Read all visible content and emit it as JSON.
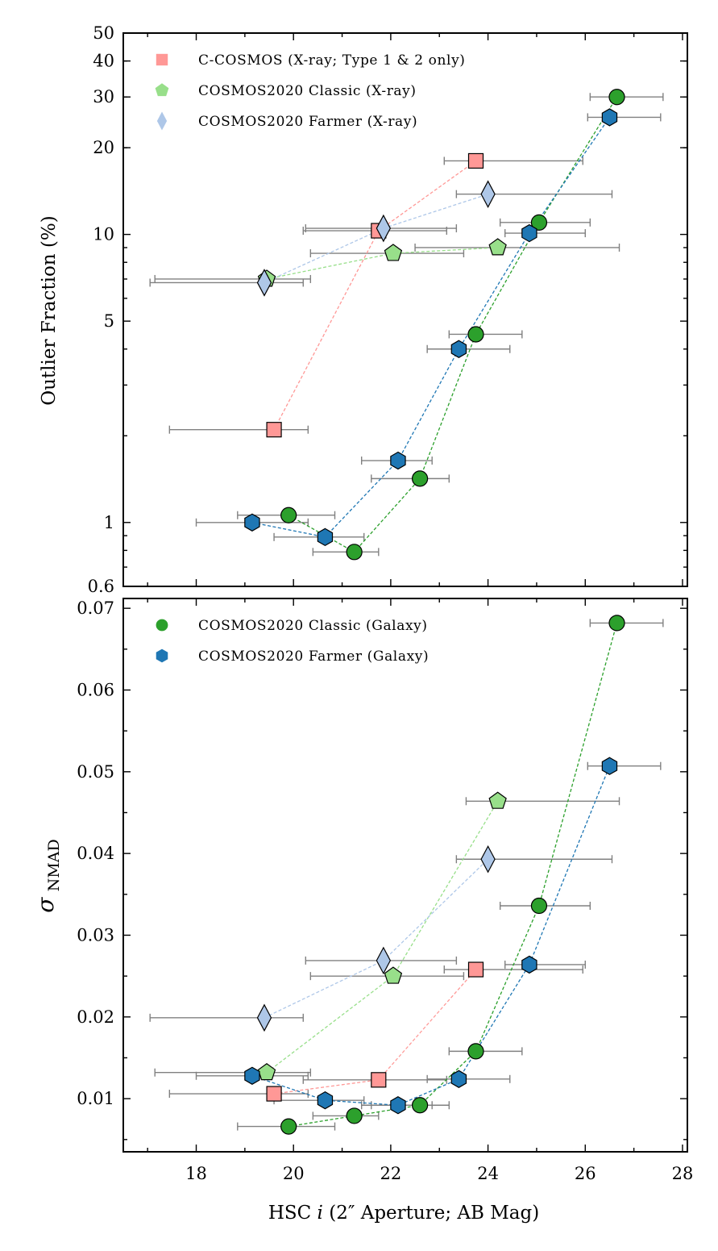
{
  "chart_data": [
    {
      "type": "scatter",
      "yscale": "log",
      "ylabel": "Outlier Fraction (%)",
      "xlabel": "",
      "xlim": [
        16.5,
        28.1
      ],
      "ylim": [
        0.6,
        50
      ],
      "yticks": [
        {
          "value": 0.6,
          "label": "0.6"
        },
        {
          "value": 1,
          "label": "1"
        },
        {
          "value": 5,
          "label": "5"
        },
        {
          "value": 10,
          "label": "10"
        },
        {
          "value": 20,
          "label": "20"
        },
        {
          "value": 30,
          "label": "30"
        },
        {
          "value": 40,
          "label": "40"
        },
        {
          "value": 50,
          "label": "50"
        }
      ],
      "legend_position": "top-left",
      "series": [
        {
          "name": "C-COSMOS (X-ray; Type 1 & 2 only)",
          "marker": "square",
          "color": "#ff9896",
          "legend": true,
          "points": [
            {
              "x": 19.6,
              "y": 2.1,
              "xlo": 17.45,
              "xhi": 20.3
            },
            {
              "x": 21.75,
              "y": 10.3,
              "xlo": 20.2,
              "xhi": 23.15
            },
            {
              "x": 23.75,
              "y": 18.0,
              "xlo": 23.1,
              "xhi": 25.95
            }
          ]
        },
        {
          "name": "COSMOS2020 Classic (X-ray)",
          "marker": "pentagon",
          "color": "#98df8a",
          "legend": true,
          "points": [
            {
              "x": 19.45,
              "y": 7.0,
              "xlo": 17.15,
              "xhi": 20.35
            },
            {
              "x": 22.05,
              "y": 8.6,
              "xlo": 20.35,
              "xhi": 23.5
            },
            {
              "x": 24.2,
              "y": 9.0,
              "xlo": 22.5,
              "xhi": 26.7
            }
          ]
        },
        {
          "name": "COSMOS2020 Farmer (X-ray)",
          "marker": "diamond",
          "color": "#aec7e8",
          "legend": true,
          "points": [
            {
              "x": 19.4,
              "y": 6.8,
              "xlo": 17.05,
              "xhi": 20.2
            },
            {
              "x": 21.85,
              "y": 10.5,
              "xlo": 20.25,
              "xhi": 23.35
            },
            {
              "x": 24.0,
              "y": 13.8,
              "xlo": 23.35,
              "xhi": 26.55
            }
          ]
        },
        {
          "name": "COSMOS2020 Classic (Galaxy)",
          "marker": "circle",
          "color": "#2ca02c",
          "legend": false,
          "points": [
            {
              "x": 19.9,
              "y": 1.06,
              "xlo": 18.85,
              "xhi": 20.85
            },
            {
              "x": 21.25,
              "y": 0.79,
              "xlo": 20.4,
              "xhi": 21.75
            },
            {
              "x": 22.6,
              "y": 1.42,
              "xlo": 21.6,
              "xhi": 23.2
            },
            {
              "x": 23.75,
              "y": 4.5,
              "xlo": 23.2,
              "xhi": 24.7
            },
            {
              "x": 25.05,
              "y": 11.0,
              "xlo": 24.25,
              "xhi": 26.1
            },
            {
              "x": 26.65,
              "y": 30.0,
              "xlo": 26.1,
              "xhi": 27.6
            }
          ]
        },
        {
          "name": "COSMOS2020 Farmer (Galaxy)",
          "marker": "hexagon",
          "color": "#1f77b4",
          "legend": false,
          "points": [
            {
              "x": 19.15,
              "y": 1.0,
              "xlo": 18.0,
              "xhi": 20.3
            },
            {
              "x": 20.65,
              "y": 0.89,
              "xlo": 19.6,
              "xhi": 21.45
            },
            {
              "x": 22.15,
              "y": 1.64,
              "xlo": 21.4,
              "xhi": 22.85
            },
            {
              "x": 23.4,
              "y": 4.0,
              "xlo": 22.75,
              "xhi": 24.45
            },
            {
              "x": 24.85,
              "y": 10.1,
              "xlo": 24.35,
              "xhi": 26.0
            },
            {
              "x": 26.5,
              "y": 25.5,
              "xlo": 26.05,
              "xhi": 27.55
            }
          ]
        }
      ]
    },
    {
      "type": "scatter",
      "yscale": "linear",
      "ylabel": "σNMAD",
      "ylabel_main": "σ",
      "ylabel_sub": "NMAD",
      "xlabel": "HSC i (2″ Aperture; AB Mag)",
      "xlabel_parts": [
        "HSC ",
        "i",
        " (2″ Aperture; AB Mag)"
      ],
      "xlim": [
        16.5,
        28.1
      ],
      "ylim": [
        0.0035,
        0.0712
      ],
      "xticks": [
        {
          "value": 18,
          "label": "18"
        },
        {
          "value": 20,
          "label": "20"
        },
        {
          "value": 22,
          "label": "22"
        },
        {
          "value": 24,
          "label": "24"
        },
        {
          "value": 26,
          "label": "26"
        },
        {
          "value": 28,
          "label": "28"
        }
      ],
      "yticks": [
        {
          "value": 0.01,
          "label": "0.01"
        },
        {
          "value": 0.02,
          "label": "0.02"
        },
        {
          "value": 0.03,
          "label": "0.03"
        },
        {
          "value": 0.04,
          "label": "0.04"
        },
        {
          "value": 0.05,
          "label": "0.05"
        },
        {
          "value": 0.06,
          "label": "0.06"
        },
        {
          "value": 0.07,
          "label": "0.07"
        }
      ],
      "legend_position": "top-left",
      "series": [
        {
          "name": "C-COSMOS (X-ray; Type 1 & 2 only)",
          "marker": "square",
          "color": "#ff9896",
          "legend": false,
          "points": [
            {
              "x": 19.6,
              "y": 0.0106,
              "xlo": 17.45,
              "xhi": 20.3
            },
            {
              "x": 21.75,
              "y": 0.0123,
              "xlo": 20.2,
              "xhi": 23.15
            },
            {
              "x": 23.75,
              "y": 0.0258,
              "xlo": 23.1,
              "xhi": 25.95
            }
          ]
        },
        {
          "name": "COSMOS2020 Classic (X-ray)",
          "marker": "pentagon",
          "color": "#98df8a",
          "legend": false,
          "points": [
            {
              "x": 19.45,
              "y": 0.0132,
              "xlo": 17.15,
              "xhi": 20.35
            },
            {
              "x": 22.05,
              "y": 0.025,
              "xlo": 20.35,
              "xhi": 23.5
            },
            {
              "x": 24.2,
              "y": 0.0464,
              "xlo": 23.55,
              "xhi": 26.7
            }
          ]
        },
        {
          "name": "COSMOS2020 Farmer (X-ray)",
          "marker": "diamond",
          "color": "#aec7e8",
          "legend": false,
          "points": [
            {
              "x": 19.4,
              "y": 0.0199,
              "xlo": 17.05,
              "xhi": 20.2
            },
            {
              "x": 21.85,
              "y": 0.0269,
              "xlo": 20.25,
              "xhi": 23.35
            },
            {
              "x": 24.0,
              "y": 0.0393,
              "xlo": 23.35,
              "xhi": 26.55
            }
          ]
        },
        {
          "name": "COSMOS2020 Classic (Galaxy)",
          "marker": "circle",
          "color": "#2ca02c",
          "legend": true,
          "points": [
            {
              "x": 19.9,
              "y": 0.0066,
              "xlo": 18.85,
              "xhi": 20.85
            },
            {
              "x": 21.25,
              "y": 0.0079,
              "xlo": 20.4,
              "xhi": 21.75
            },
            {
              "x": 22.6,
              "y": 0.0092,
              "xlo": 21.6,
              "xhi": 23.2
            },
            {
              "x": 23.75,
              "y": 0.0158,
              "xlo": 23.2,
              "xhi": 24.7
            },
            {
              "x": 25.05,
              "y": 0.0336,
              "xlo": 24.25,
              "xhi": 26.1
            },
            {
              "x": 26.65,
              "y": 0.0682,
              "xlo": 26.1,
              "xhi": 27.6
            }
          ]
        },
        {
          "name": "COSMOS2020 Farmer (Galaxy)",
          "marker": "hexagon",
          "color": "#1f77b4",
          "legend": true,
          "points": [
            {
              "x": 19.15,
              "y": 0.0128,
              "xlo": 18.0,
              "xhi": 20.3
            },
            {
              "x": 20.65,
              "y": 0.0098,
              "xlo": 19.6,
              "xhi": 21.45
            },
            {
              "x": 22.15,
              "y": 0.0092,
              "xlo": 21.4,
              "xhi": 22.85
            },
            {
              "x": 23.4,
              "y": 0.0124,
              "xlo": 22.75,
              "xhi": 24.45
            },
            {
              "x": 24.85,
              "y": 0.0264,
              "xlo": 24.35,
              "xhi": 26.0
            },
            {
              "x": 26.5,
              "y": 0.0507,
              "xlo": 26.05,
              "xhi": 27.55
            }
          ]
        }
      ]
    }
  ]
}
